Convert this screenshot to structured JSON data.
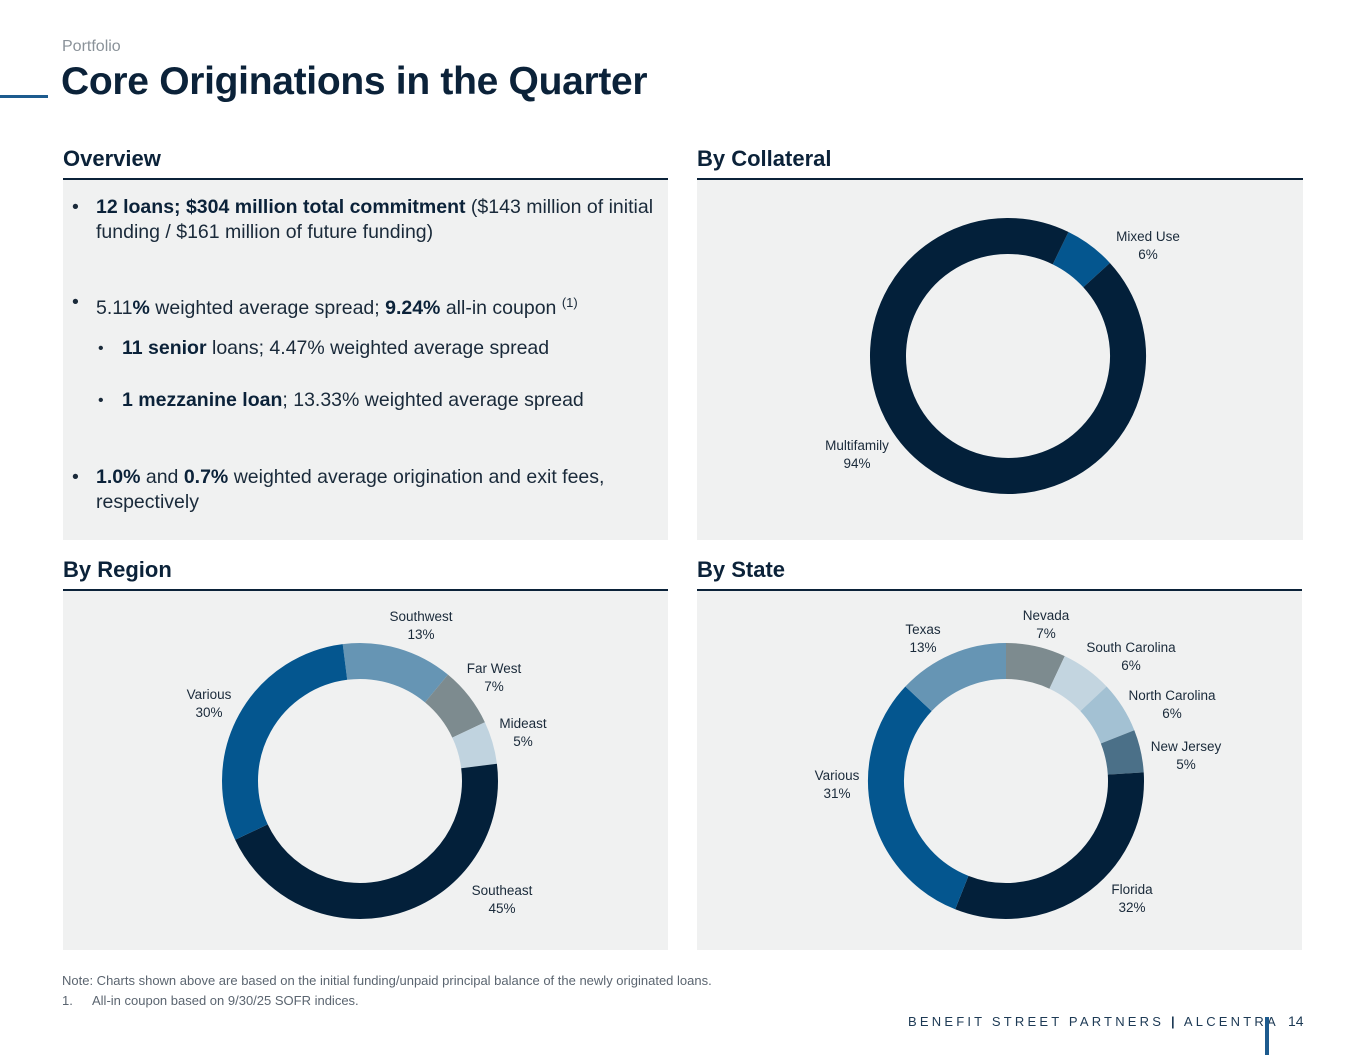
{
  "header": {
    "kicker": "Portfolio",
    "title": "Core Originations in the Quarter"
  },
  "sections": {
    "overview": "Overview",
    "collateral": "By Collateral",
    "region": "By Region",
    "state": "By State"
  },
  "overview": {
    "b1": {
      "bold": "12 loans; $304 million total commitment",
      "rest": " ($143 million of initial funding / $161 million of future funding)"
    },
    "b2": {
      "p1": " 5.11",
      "p2": "%",
      "p3": " weighted average spread; ",
      "p4": "9.24%",
      "p5": " all-in coupon ",
      "sup": "(1)"
    },
    "b3": {
      "bold": "11 senior",
      "rest": " loans; 4.47% weighted average spread"
    },
    "b4": {
      "bold": "1 mezzanine loan",
      "rest": "; 13.33% weighted average spread"
    },
    "b5": {
      "bold1": "1.0%",
      "mid": " and ",
      "bold2": "0.7%",
      "rest": " weighted average origination and exit fees, respectively"
    },
    "bullet_char": "•"
  },
  "chart_data": [
    {
      "type": "pie",
      "donut": true,
      "title": "By Collateral",
      "slices": [
        {
          "label": "Mixed Use",
          "value": 6,
          "value_label": "6%",
          "color": "#04568f"
        },
        {
          "label": "Multifamily",
          "value": 94,
          "value_label": "94%",
          "color": "#03203a"
        }
      ]
    },
    {
      "type": "pie",
      "donut": true,
      "title": "By Region",
      "slices": [
        {
          "label": "Southwest",
          "value": 13,
          "value_label": "13%",
          "color": "#6695b4"
        },
        {
          "label": "Far West",
          "value": 7,
          "value_label": "7%",
          "color": "#7d8b8f"
        },
        {
          "label": "Mideast",
          "value": 5,
          "value_label": "5%",
          "color": "#c0d3df"
        },
        {
          "label": "Southeast",
          "value": 45,
          "value_label": "45%",
          "color": "#03203a"
        },
        {
          "label": "Various",
          "value": 30,
          "value_label": "30%",
          "color": "#04568f"
        }
      ]
    },
    {
      "type": "pie",
      "donut": true,
      "title": "By State",
      "slices": [
        {
          "label": "Nevada",
          "value": 7,
          "value_label": "7%",
          "color": "#7d8b8f"
        },
        {
          "label": "South Carolina",
          "value": 6,
          "value_label": "6%",
          "color": "#c3d5e0"
        },
        {
          "label": "North Carolina",
          "value": 6,
          "value_label": "6%",
          "color": "#a3c1d3"
        },
        {
          "label": "New Jersey",
          "value": 5,
          "value_label": "5%",
          "color": "#4b7088"
        },
        {
          "label": "Florida",
          "value": 32,
          "value_label": "32%",
          "color": "#03203a"
        },
        {
          "label": "Various",
          "value": 31,
          "value_label": "31%",
          "color": "#04568f"
        },
        {
          "label": "Texas",
          "value": 13,
          "value_label": "13%",
          "color": "#6695b4"
        }
      ]
    }
  ],
  "footnotes": {
    "note": "Note: Charts shown above are based on the initial funding/unpaid principal balance of the newly originated loans.",
    "n1_num": "1.",
    "n1_text": "All-in coupon based on 9/30/25 SOFR indices."
  },
  "footer": {
    "brand": "BENEFIT STREET PARTNERS",
    "separator": "|",
    "brand2": "ALCENTRA",
    "page": "14"
  }
}
